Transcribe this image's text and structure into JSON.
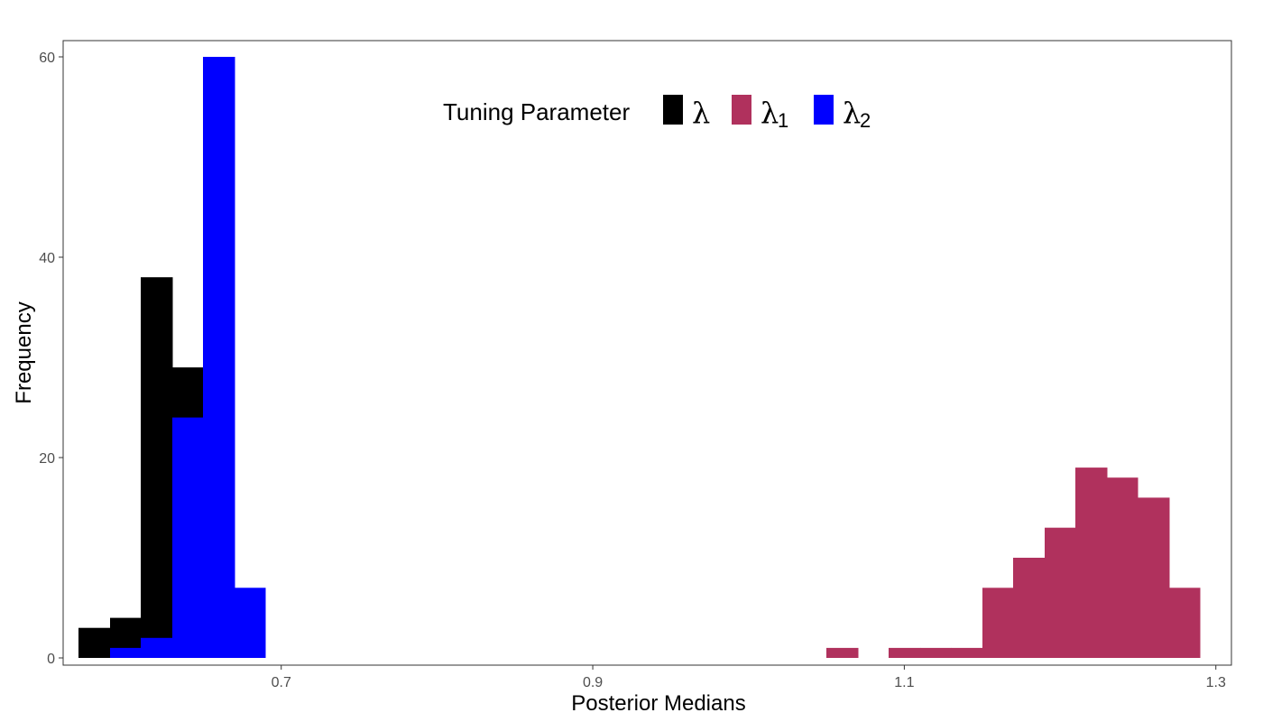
{
  "chart_data": {
    "type": "histogram",
    "xlabel": "Posterior Medians",
    "ylabel": "Frequency",
    "xlim": [
      0.56,
      1.31
    ],
    "ylim": [
      0,
      60
    ],
    "x_ticks": [
      0.7,
      0.9,
      1.1,
      1.3
    ],
    "x_tick_labels": [
      "0.7",
      "0.9",
      "1.1",
      "1.3"
    ],
    "y_ticks": [
      0,
      20,
      40,
      60
    ],
    "y_tick_labels": [
      "0",
      "20",
      "40",
      "60"
    ],
    "bin_width": 0.02,
    "grid": false,
    "legend": {
      "title": "Tuning Parameter",
      "position": "top-center",
      "orientation": "horizontal",
      "entries": [
        {
          "symbol": "λ",
          "subscript": "",
          "color": "#000000"
        },
        {
          "symbol": "λ",
          "subscript": "1",
          "color": "#B0315D"
        },
        {
          "symbol": "λ",
          "subscript": "2",
          "color": "#0000FF"
        }
      ]
    },
    "series": [
      {
        "color": "#000000",
        "bins": [
          {
            "x0": 0.57,
            "x1": 0.59,
            "count": 3
          },
          {
            "x0": 0.59,
            "x1": 0.61,
            "count": 4
          },
          {
            "x0": 0.61,
            "x1": 0.63,
            "count": 38
          },
          {
            "x0": 0.63,
            "x1": 0.65,
            "count": 29
          }
        ]
      },
      {
        "color": "#0000FF",
        "bins": [
          {
            "x0": 0.59,
            "x1": 0.61,
            "count": 1
          },
          {
            "x0": 0.61,
            "x1": 0.63,
            "count": 2
          },
          {
            "x0": 0.63,
            "x1": 0.65,
            "count": 24
          },
          {
            "x0": 0.65,
            "x1": 0.67,
            "count": 60
          },
          {
            "x0": 0.67,
            "x1": 0.69,
            "count": 7
          }
        ]
      },
      {
        "color": "#B0315D",
        "bins": [
          {
            "x0": 1.05,
            "x1": 1.07,
            "count": 1
          },
          {
            "x0": 1.09,
            "x1": 1.11,
            "count": 1
          },
          {
            "x0": 1.11,
            "x1": 1.13,
            "count": 1
          },
          {
            "x0": 1.13,
            "x1": 1.15,
            "count": 1
          },
          {
            "x0": 1.15,
            "x1": 1.17,
            "count": 7
          },
          {
            "x0": 1.17,
            "x1": 1.19,
            "count": 10
          },
          {
            "x0": 1.19,
            "x1": 1.21,
            "count": 13
          },
          {
            "x0": 1.21,
            "x1": 1.23,
            "count": 19
          },
          {
            "x0": 1.23,
            "x1": 1.25,
            "count": 18
          },
          {
            "x0": 1.25,
            "x1": 1.27,
            "count": 16
          },
          {
            "x0": 1.27,
            "x1": 1.29,
            "count": 7
          }
        ]
      }
    ]
  }
}
